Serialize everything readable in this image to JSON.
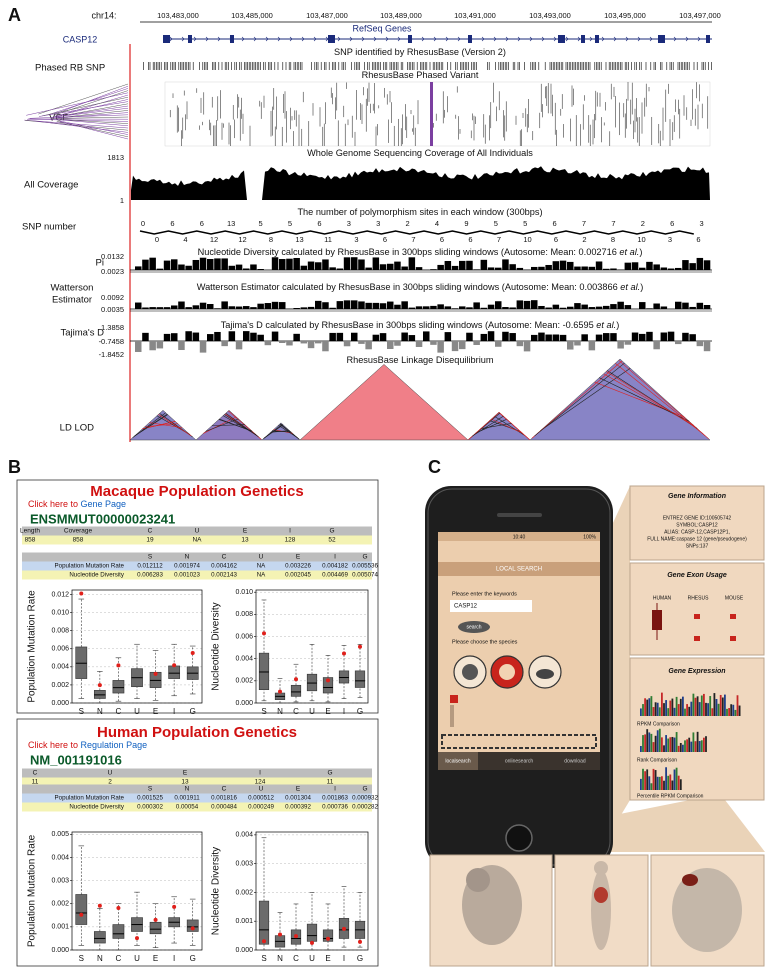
{
  "panel_labels": [
    "A",
    "B",
    "C"
  ],
  "panel_a": {
    "chrom": "chr14:",
    "coords": [
      "103,483,000",
      "103,485,000",
      "103,487,000",
      "103,489,000",
      "103,491,000",
      "103,493,000",
      "103,495,000",
      "103,497,000"
    ],
    "refseq": "RefSeq Genes",
    "gene": "CASP12",
    "tracks": [
      {
        "label": "Phased RB SNP",
        "title": "SNP identified by RhesusBase (Version 2)"
      },
      {
        "label": "VCF",
        "title": "RhesusBase Phased Variant"
      },
      {
        "label": "All Coverage",
        "title": "Whole Genome Sequencing Coverage of All Individuals",
        "scale": [
          "1813",
          "1"
        ]
      },
      {
        "label": "SNP number",
        "title": "The number of polymorphism sites in each window (300bps)",
        "counts_top": [
          0,
          6,
          6,
          13,
          5,
          5,
          6,
          3,
          3,
          2,
          4,
          9,
          5,
          5,
          6,
          7,
          7,
          2,
          6,
          3
        ],
        "counts_bottom": [
          0,
          4,
          12,
          12,
          8,
          13,
          11,
          3,
          6,
          7,
          6,
          6,
          7,
          10,
          6,
          2,
          8,
          10,
          3,
          6
        ]
      },
      {
        "label": "Pi",
        "title": "Nucleotide Diversity calculated by RhesusBase in 300bps sliding windows (Autosome: Mean: 0.002716 ",
        "title_em": "et al.",
        "title_end": ")",
        "scale": [
          "0.0132",
          "0.0023"
        ]
      },
      {
        "label_lines": [
          "Watterson",
          "Estimator"
        ],
        "title": "Watterson Estimator calculated by RhesusBase in 300bps sliding windows (Autosome: Mean: 0.003866 ",
        "title_em": "et al.",
        "title_end": ")",
        "scale": [
          "0.0092",
          "0.0035"
        ]
      },
      {
        "label": "Tajima's D",
        "title": "Tajima's D calculated by RhesusBase in 300bps sliding windows (Autosome: Mean: -0.6595 ",
        "title_em": "et al.",
        "title_end": ")",
        "scale": [
          "1.3858",
          "-0.7458",
          "-1.8452"
        ]
      },
      {
        "label": "LD LOD",
        "title": "RhesusBase Linkage Disequilibrium"
      }
    ]
  },
  "panel_b": {
    "macaque": {
      "title": "Macaque Population Genetics",
      "link_prefix": "Click here to ",
      "link": "Gene Page",
      "id": "ENSMMUT00000023241",
      "table1": {
        "header": [
          "Length",
          "Coverage",
          "C",
          "U",
          "E",
          "I",
          "G"
        ],
        "values": [
          858,
          858,
          19,
          "NA",
          13,
          128,
          52
        ]
      },
      "table2": {
        "header": [
          "S",
          "N",
          "C",
          "U",
          "E",
          "I",
          "G"
        ],
        "rows": [
          {
            "name": "Population Mutation Rate",
            "values": [
              0.012112,
              0.001974,
              0.004162,
              "NA",
              0.003226,
              0.004182,
              0.005536
            ]
          },
          {
            "name": "Nucleotide Diversity",
            "values": [
              0.006283,
              0.001023,
              0.002143,
              "NA",
              0.002045,
              0.004469,
              0.005074
            ]
          }
        ]
      }
    },
    "human": {
      "title": "Human Population Genetics",
      "link_prefix": "Click here to ",
      "link": "Regulation Page",
      "id": "NM_001191016",
      "table1": {
        "header": [
          "C",
          "U",
          "E",
          "I",
          "G"
        ],
        "values": [
          11,
          2,
          13,
          124,
          11
        ]
      },
      "table2": {
        "header": [
          "S",
          "N",
          "C",
          "U",
          "E",
          "I",
          "G"
        ],
        "rows": [
          {
            "name": "Population Mutation Rate",
            "values": [
              0.001525,
              0.001911,
              0.001816,
              0.000512,
              0.001304,
              0.001863,
              0.000932
            ]
          },
          {
            "name": "Nucleotide Diversity",
            "values": [
              0.000302,
              0.00054,
              0.000484,
              0.000249,
              0.000392,
              0.000736,
              0.000282
            ]
          }
        ]
      }
    }
  },
  "chart_data": [
    {
      "type": "box",
      "y_label": "Population Mutation Rate",
      "categories": [
        "S",
        "N",
        "C",
        "U",
        "E",
        "I",
        "G"
      ],
      "ylim": [
        0,
        0.0125
      ],
      "yticks": [
        {
          "value": 0,
          "label": "0.000"
        },
        0.002,
        0.004,
        0.006,
        0.008,
        {
          "value": 0.01,
          "label": "0.010"
        },
        0.012
      ],
      "grid": true,
      "color": "#6b6b6b",
      "point_color": "#e0201b",
      "stats": {
        "min": [
          0.0005,
          0,
          0.0002,
          0.0005,
          0.0003,
          0.0008,
          0.001
        ],
        "q1": [
          0.0027,
          0.0005,
          0.0011,
          0.0018,
          0.0017,
          0.0027,
          0.0026
        ],
        "median": [
          0.0044,
          0.0009,
          0.0017,
          0.0028,
          0.0025,
          0.0033,
          0.0033
        ],
        "q3": [
          0.0062,
          0.0014,
          0.0025,
          0.0038,
          0.0034,
          0.0041,
          0.004
        ],
        "max": [
          0.0115,
          0.0035,
          0.005,
          0.0065,
          0.0058,
          0.0065,
          0.0063
        ]
      }
    },
    {
      "type": "box",
      "y_label": "Nucleotide Diversity",
      "categories": [
        "S",
        "N",
        "C",
        "U",
        "E",
        "I",
        "G"
      ],
      "ylim": [
        0,
        0.0102
      ],
      "yticks": [
        {
          "value": 0,
          "label": "0.000"
        },
        0.002,
        0.004,
        0.006,
        0.008,
        {
          "value": 0.01,
          "label": "0.010"
        }
      ],
      "grid": true,
      "color": "#6b6b6b",
      "point_color": "#e0201b",
      "stats": {
        "min": [
          0.0002,
          0,
          0.0001,
          0.0002,
          0.0001,
          0.0004,
          0.0005
        ],
        "q1": [
          0.0012,
          0.0003,
          0.0006,
          0.0011,
          0.0009,
          0.0018,
          0.0014
        ],
        "median": [
          0.0028,
          0.0006,
          0.001,
          0.0018,
          0.0014,
          0.0023,
          0.002
        ],
        "q3": [
          0.0045,
          0.0009,
          0.0016,
          0.0026,
          0.0023,
          0.0029,
          0.0029
        ],
        "max": [
          0.0093,
          0.0022,
          0.0035,
          0.0053,
          0.0043,
          0.0052,
          0.0053
        ]
      }
    },
    {
      "type": "box",
      "y_label": "Population Mutation Rate",
      "categories": [
        "S",
        "N",
        "C",
        "U",
        "E",
        "I",
        "G"
      ],
      "ylim": [
        0,
        0.0051
      ],
      "yticks": [
        {
          "value": 0,
          "label": "0.000"
        },
        0.001,
        0.002,
        0.003,
        0.004,
        0.005
      ],
      "grid": true,
      "color": "#6b6b6b",
      "point_color": "#e0201b",
      "stats": {
        "min": [
          0.0002,
          0,
          0,
          0.0002,
          0.0001,
          0.0003,
          0.0002
        ],
        "q1": [
          0.0011,
          0.0003,
          0.0005,
          0.0008,
          0.0007,
          0.001,
          0.0008
        ],
        "median": [
          0.0016,
          0.0005,
          0.0007,
          0.0011,
          0.0009,
          0.0012,
          0.001
        ],
        "q3": [
          0.0024,
          0.0008,
          0.0011,
          0.0014,
          0.0012,
          0.0014,
          0.0013
        ],
        "max": [
          0.0045,
          0.0018,
          0.002,
          0.0025,
          0.002,
          0.0023,
          0.0022
        ]
      }
    },
    {
      "type": "box",
      "y_label": "Nucleotide Diversity",
      "categories": [
        "S",
        "N",
        "C",
        "U",
        "E",
        "I",
        "G"
      ],
      "ylim": [
        0,
        0.0041
      ],
      "yticks": [
        {
          "value": 0,
          "label": "0.000"
        },
        0.001,
        0.002,
        0.003,
        0.004
      ],
      "grid": true,
      "color": "#6b6b6b",
      "point_color": "#e0201b",
      "stats": {
        "min": [
          0,
          0,
          0,
          0,
          0,
          0.0001,
          0.0001
        ],
        "q1": [
          0.0002,
          0.0001,
          0.0002,
          0.0003,
          0.0003,
          0.0004,
          0.0004
        ],
        "median": [
          0.0007,
          0.0003,
          0.0004,
          0.0005,
          0.0004,
          0.0007,
          0.0007
        ],
        "q3": [
          0.0017,
          0.0005,
          0.0007,
          0.0009,
          0.0007,
          0.0011,
          0.001
        ],
        "max": [
          0.0039,
          0.0013,
          0.0016,
          0.002,
          0.0016,
          0.0022,
          0.002
        ]
      }
    }
  ],
  "panel_c": {
    "phone": {
      "time": "10:40",
      "battery": "100%",
      "screen_title": "LOCAL SEARCH",
      "prompt": "Please enter the keywords",
      "input": "CASP12",
      "button": "search",
      "species_prompt": "Please choose the species",
      "tabs": [
        "localsearch",
        "onlinesearch",
        "download"
      ]
    },
    "gene_info": {
      "title": "Gene Information",
      "lines": [
        "ENTREZ GENE ID:100505742",
        "SYMBOL:CASP12",
        "ALIAS: CASP-12,CASP12P1,",
        "FULL NAME:caspase 12 (gene/pseudogene)",
        "SNPs:137"
      ]
    },
    "exon": {
      "title": "Gene Exon Usage",
      "species": [
        "HUMAN",
        "RHESUS",
        "MOUSE"
      ]
    },
    "expression": {
      "title": "Gene Expression",
      "captions": [
        "RPKM Comparison",
        "Rank Comparison",
        "Percentile RPKM Comparison"
      ]
    }
  }
}
